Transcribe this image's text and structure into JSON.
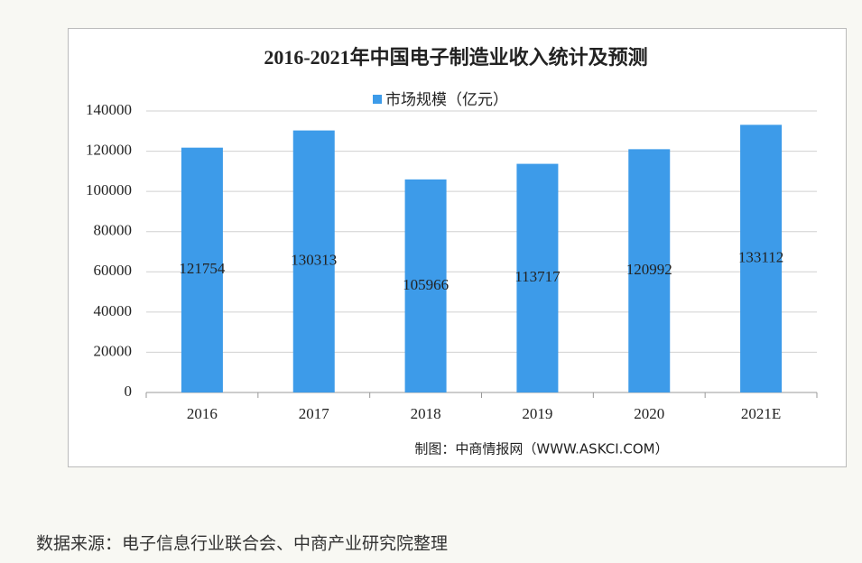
{
  "chart_data": {
    "type": "bar",
    "title": "2016-2021年中国电子制造业收入统计及预测",
    "categories": [
      "2016",
      "2017",
      "2018",
      "2019",
      "2020",
      "2021E"
    ],
    "series": [
      {
        "name": "市场规模（亿元）",
        "color": "#3d9be9",
        "values": [
          121754,
          130313,
          105966,
          113717,
          120992,
          133112
        ]
      }
    ],
    "ylim": [
      0,
      140000
    ],
    "yticks": [
      0,
      20000,
      40000,
      60000,
      80000,
      100000,
      120000,
      140000
    ],
    "grid": true,
    "legend": "top",
    "credit": "制图：中商情报网（WWW.ASKCI.COM）"
  },
  "footnote": "数据来源：电子信息行业联合会、中商产业研究院整理"
}
